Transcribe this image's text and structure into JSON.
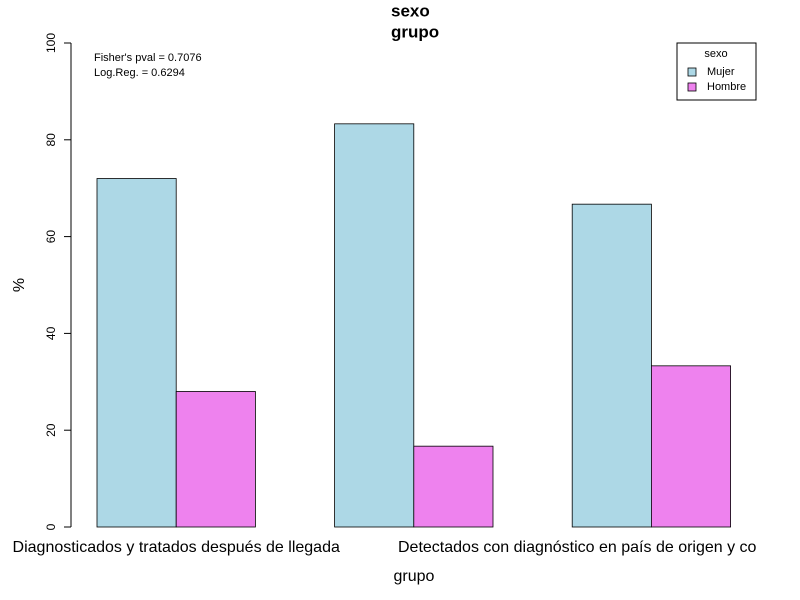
{
  "chart_data": {
    "type": "bar",
    "title": [
      "sexo",
      "grupo"
    ],
    "annotations": [
      "Fisher's pval = 0.7076",
      "Log.Reg. = 0.6294"
    ],
    "xlabel": "grupo",
    "ylabel": "%",
    "categories": [
      "Diagnosticados y tratados después de llegada",
      null,
      "Detectados con diagnóstico en país de origen y co"
    ],
    "series": [
      {
        "name": "Mujer",
        "color": "#add8e6",
        "values": [
          72,
          83.3,
          66.7
        ]
      },
      {
        "name": "Hombre",
        "color": "#ee82ee",
        "values": [
          28,
          16.7,
          33.3
        ]
      }
    ],
    "legend_title": "sexo",
    "legend": "top-right",
    "ylim": [
      0,
      100
    ],
    "yticks": [
      0,
      20,
      40,
      60,
      80,
      100
    ]
  }
}
